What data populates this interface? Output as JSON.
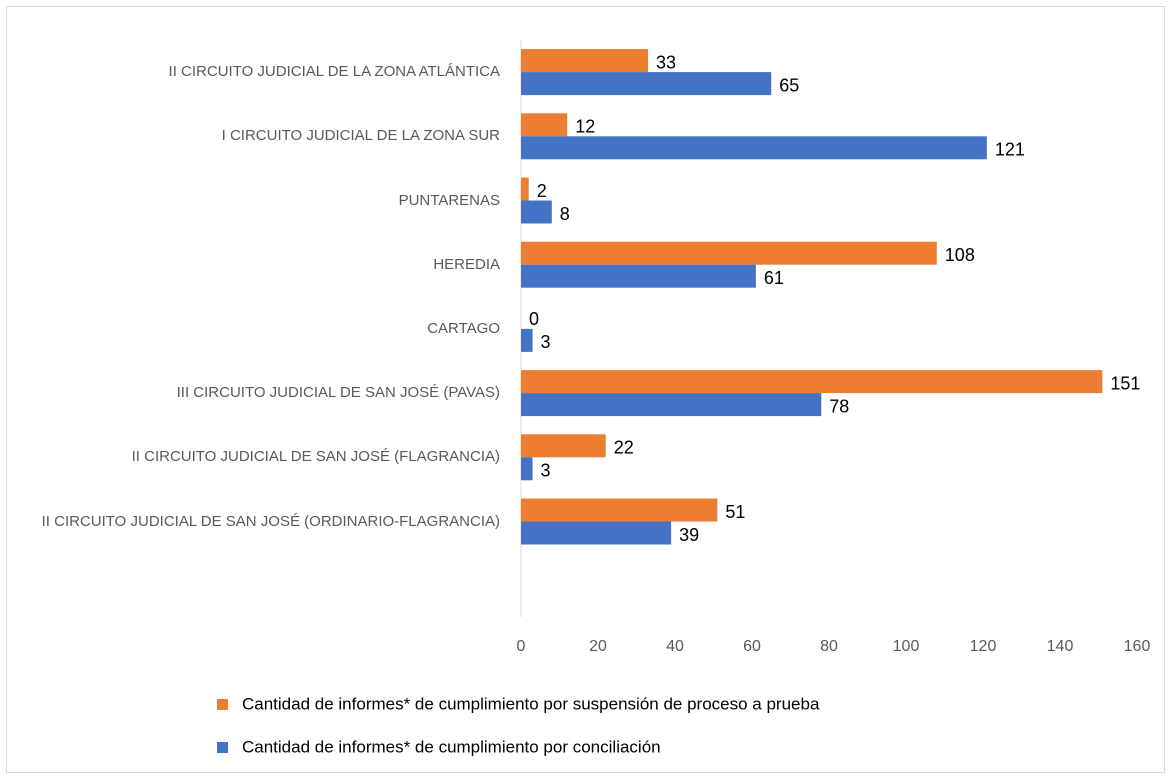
{
  "chart_data": {
    "type": "bar",
    "orientation": "horizontal",
    "categories": [
      "II CIRCUITO JUDICIAL DE LA ZONA ATLÁNTICA",
      "I CIRCUITO JUDICIAL DE LA ZONA SUR",
      "PUNTARENAS",
      "HEREDIA",
      "CARTAGO",
      "III CIRCUITO JUDICIAL DE SAN JOSÉ (PAVAS)",
      "II CIRCUITO JUDICIAL DE SAN JOSÉ (FLAGRANCIA)",
      "II CIRCUITO JUDICIAL DE SAN JOSÉ (ORDINARIO-FLAGRANCIA)"
    ],
    "series": [
      {
        "name": "Cantidad de informes* de cumplimiento por suspensión de proceso a prueba",
        "color": "#ed7d31",
        "values": [
          33,
          12,
          2,
          108,
          0,
          151,
          22,
          51
        ]
      },
      {
        "name": "Cantidad de informes* de cumplimiento por conciliación",
        "color": "#4472c4",
        "values": [
          65,
          121,
          8,
          61,
          3,
          78,
          3,
          39
        ]
      }
    ],
    "xlim": [
      0,
      160
    ],
    "xticks": [
      0,
      20,
      40,
      60,
      80,
      100,
      120,
      140,
      160
    ],
    "grid": false
  }
}
